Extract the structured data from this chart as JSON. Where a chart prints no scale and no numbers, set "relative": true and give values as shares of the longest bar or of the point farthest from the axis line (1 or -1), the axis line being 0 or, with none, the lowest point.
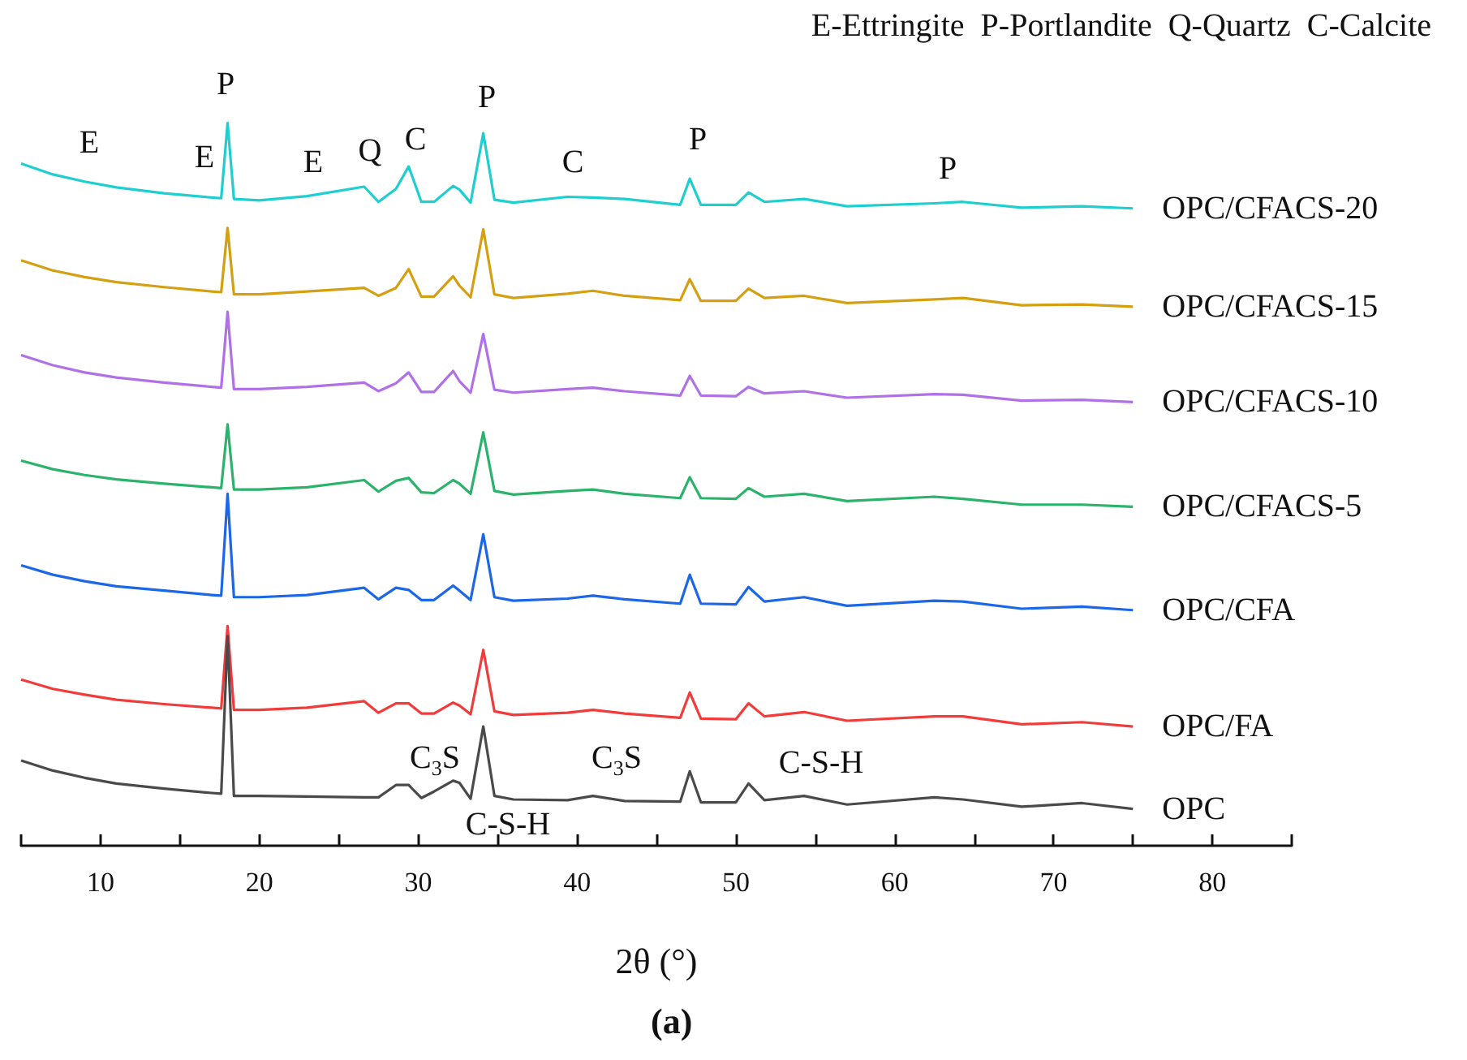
{
  "chart_data": {
    "type": "line",
    "title": "(a)",
    "xlabel": "2θ (°)",
    "relative": true,
    "legend": false,
    "grid": false,
    "marker": "none",
    "line_style": "solid",
    "xlim": [
      5,
      85
    ],
    "xticks": [
      {
        "value": 5,
        "label": null
      },
      10,
      {
        "value": 15,
        "label": null
      },
      20,
      {
        "value": 25,
        "label": null
      },
      30,
      {
        "value": 35,
        "label": null
      },
      40,
      {
        "value": 45,
        "label": null
      },
      50,
      {
        "value": 55,
        "label": null
      },
      60,
      {
        "value": 65,
        "label": null
      },
      70,
      {
        "value": 75,
        "label": null
      },
      80,
      {
        "value": 85,
        "label": null
      }
    ],
    "x": [
      5,
      7,
      9,
      11,
      14,
      17,
      17.6,
      18,
      18.4,
      20,
      23,
      26.6,
      27.5,
      28.6,
      29.4,
      30.2,
      31,
      32.2,
      32.6,
      33.3,
      34.1,
      34.8,
      36,
      39.4,
      41,
      43,
      46.5,
      47.1,
      47.8,
      50,
      50.8,
      51.8,
      54.3,
      57,
      62.5,
      64.3,
      68,
      71.8,
      75
    ],
    "series": [
      {
        "name": "OPC/CFACS-20",
        "color": "#1fcfcf",
        "values": [
          0.944,
          0.929,
          0.919,
          0.911,
          0.903,
          0.897,
          0.896,
          1.0,
          0.895,
          0.893,
          0.899,
          0.912,
          0.891,
          0.909,
          0.94,
          0.891,
          0.891,
          0.913,
          0.908,
          0.89,
          0.986,
          0.894,
          0.89,
          0.898,
          0.897,
          0.895,
          0.887,
          0.923,
          0.887,
          0.887,
          0.904,
          0.891,
          0.895,
          0.885,
          0.889,
          0.891,
          0.883,
          0.885,
          0.882
        ]
      },
      {
        "name": "OPC/CFACS-15",
        "color": "#d4a012",
        "values": [
          0.81,
          0.796,
          0.787,
          0.78,
          0.773,
          0.767,
          0.766,
          0.855,
          0.763,
          0.763,
          0.767,
          0.772,
          0.761,
          0.772,
          0.798,
          0.76,
          0.76,
          0.788,
          0.775,
          0.759,
          0.853,
          0.763,
          0.758,
          0.764,
          0.768,
          0.761,
          0.755,
          0.784,
          0.754,
          0.754,
          0.771,
          0.758,
          0.761,
          0.751,
          0.756,
          0.758,
          0.748,
          0.749,
          0.746
        ]
      },
      {
        "name": "OPC/CFACS-10",
        "color": "#b071e6",
        "values": [
          0.679,
          0.665,
          0.655,
          0.648,
          0.641,
          0.635,
          0.634,
          0.739,
          0.632,
          0.632,
          0.635,
          0.641,
          0.629,
          0.64,
          0.655,
          0.628,
          0.628,
          0.657,
          0.643,
          0.627,
          0.708,
          0.631,
          0.627,
          0.632,
          0.634,
          0.629,
          0.623,
          0.65,
          0.623,
          0.622,
          0.635,
          0.626,
          0.629,
          0.62,
          0.625,
          0.624,
          0.616,
          0.617,
          0.614
        ]
      },
      {
        "name": "OPC/CFACS-5",
        "color": "#2bb36b",
        "values": [
          0.533,
          0.521,
          0.513,
          0.507,
          0.501,
          0.496,
          0.495,
          0.583,
          0.493,
          0.493,
          0.496,
          0.506,
          0.49,
          0.505,
          0.509,
          0.489,
          0.488,
          0.506,
          0.501,
          0.487,
          0.572,
          0.491,
          0.486,
          0.491,
          0.493,
          0.487,
          0.481,
          0.51,
          0.481,
          0.48,
          0.495,
          0.483,
          0.487,
          0.477,
          0.483,
          0.48,
          0.472,
          0.472,
          0.469
        ]
      },
      {
        "name": "OPC/CFA",
        "color": "#1c66e8",
        "values": [
          0.388,
          0.375,
          0.366,
          0.359,
          0.353,
          0.347,
          0.346,
          0.487,
          0.344,
          0.344,
          0.347,
          0.357,
          0.341,
          0.357,
          0.354,
          0.34,
          0.34,
          0.36,
          0.353,
          0.34,
          0.431,
          0.344,
          0.339,
          0.342,
          0.346,
          0.341,
          0.335,
          0.375,
          0.335,
          0.334,
          0.358,
          0.338,
          0.344,
          0.332,
          0.339,
          0.338,
          0.328,
          0.331,
          0.326
        ]
      },
      {
        "name": "OPC/FA",
        "color": "#f23b3b",
        "values": [
          0.23,
          0.217,
          0.209,
          0.202,
          0.196,
          0.191,
          0.19,
          0.304,
          0.188,
          0.188,
          0.191,
          0.2,
          0.184,
          0.197,
          0.197,
          0.183,
          0.183,
          0.198,
          0.194,
          0.182,
          0.271,
          0.186,
          0.181,
          0.184,
          0.188,
          0.183,
          0.177,
          0.212,
          0.176,
          0.175,
          0.197,
          0.179,
          0.185,
          0.173,
          0.179,
          0.179,
          0.168,
          0.171,
          0.165
        ]
      },
      {
        "name": "OPC",
        "color": "#4a4a4a",
        "values": [
          0.118,
          0.104,
          0.094,
          0.086,
          0.079,
          0.073,
          0.072,
          0.29,
          0.069,
          0.069,
          0.068,
          0.067,
          0.067,
          0.084,
          0.084,
          0.066,
          0.075,
          0.09,
          0.087,
          0.065,
          0.165,
          0.069,
          0.064,
          0.063,
          0.069,
          0.062,
          0.061,
          0.103,
          0.06,
          0.06,
          0.086,
          0.063,
          0.069,
          0.057,
          0.067,
          0.064,
          0.054,
          0.059,
          0.051
        ]
      }
    ],
    "annotations": [
      "E-Ettringite  P-Portlandite  Q-Quartz  C-Calcite",
      "E",
      "E",
      "P",
      "E",
      "Q",
      "C",
      "P",
      "C",
      "P",
      "P",
      "C$_{3}$S",
      "C$_{3}$S",
      "C-S-H",
      "C-S-H"
    ]
  }
}
